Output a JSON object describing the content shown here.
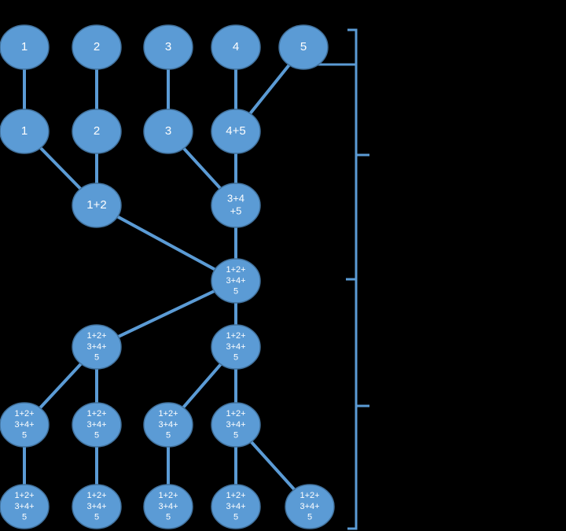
{
  "colors": {
    "background": "#000000",
    "node_fill": "#5b9bd5",
    "node_stroke": "#41719c",
    "edge": "#5b9bd5",
    "label": "#ffffff"
  },
  "nodes": [
    {
      "id": "r0c0",
      "lines": [
        "1"
      ]
    },
    {
      "id": "r0c1",
      "lines": [
        "2"
      ]
    },
    {
      "id": "r0c2",
      "lines": [
        "3"
      ]
    },
    {
      "id": "r0c3",
      "lines": [
        "4"
      ]
    },
    {
      "id": "r0c4",
      "lines": [
        "5"
      ]
    },
    {
      "id": "r1c0",
      "lines": [
        "1"
      ]
    },
    {
      "id": "r1c1",
      "lines": [
        "2"
      ]
    },
    {
      "id": "r1c2",
      "lines": [
        "3"
      ]
    },
    {
      "id": "r1c3",
      "lines": [
        "4+5"
      ]
    },
    {
      "id": "r2c1",
      "lines": [
        "1+2"
      ]
    },
    {
      "id": "r2c3",
      "lines": [
        "3+4",
        "+5"
      ]
    },
    {
      "id": "r3c3",
      "lines": [
        "1+2+",
        "3+4+",
        "5"
      ]
    },
    {
      "id": "r4c1",
      "lines": [
        "1+2+",
        "3+4+",
        "5"
      ]
    },
    {
      "id": "r4c3",
      "lines": [
        "1+2+",
        "3+4+",
        "5"
      ]
    },
    {
      "id": "r5c0",
      "lines": [
        "1+2+",
        "3+4+",
        "5"
      ]
    },
    {
      "id": "r5c1",
      "lines": [
        "1+2+",
        "3+4+",
        "5"
      ]
    },
    {
      "id": "r5c2",
      "lines": [
        "1+2+",
        "3+4+",
        "5"
      ]
    },
    {
      "id": "r5c3",
      "lines": [
        "1+2+",
        "3+4+",
        "5"
      ]
    },
    {
      "id": "r6c0",
      "lines": [
        "1+2+",
        "3+4+",
        "5"
      ]
    },
    {
      "id": "r6c1",
      "lines": [
        "1+2+",
        "3+4+",
        "5"
      ]
    },
    {
      "id": "r6c2",
      "lines": [
        "1+2+",
        "3+4+",
        "5"
      ]
    },
    {
      "id": "r6c3",
      "lines": [
        "1+2+",
        "3+4+",
        "5"
      ]
    },
    {
      "id": "r6c4",
      "lines": [
        "1+2+",
        "3+4+",
        "5"
      ]
    }
  ],
  "edges": [
    [
      "r0c0",
      "r1c0"
    ],
    [
      "r0c1",
      "r1c1"
    ],
    [
      "r0c2",
      "r1c2"
    ],
    [
      "r0c3",
      "r1c3"
    ],
    [
      "r0c4",
      "r1c3"
    ],
    [
      "r1c0",
      "r2c1"
    ],
    [
      "r1c1",
      "r2c1"
    ],
    [
      "r1c2",
      "r2c3"
    ],
    [
      "r1c3",
      "r2c3"
    ],
    [
      "r2c1",
      "r3c3"
    ],
    [
      "r2c3",
      "r3c3"
    ],
    [
      "r3c3",
      "r4c1"
    ],
    [
      "r3c3",
      "r4c3"
    ],
    [
      "r4c1",
      "r5c0"
    ],
    [
      "r4c1",
      "r5c1"
    ],
    [
      "r4c3",
      "r5c2"
    ],
    [
      "r4c3",
      "r5c3"
    ],
    [
      "r5c0",
      "r6c0"
    ],
    [
      "r5c1",
      "r6c1"
    ],
    [
      "r5c2",
      "r6c2"
    ],
    [
      "r5c3",
      "r6c3"
    ],
    [
      "r5c3",
      "r6c4"
    ]
  ]
}
